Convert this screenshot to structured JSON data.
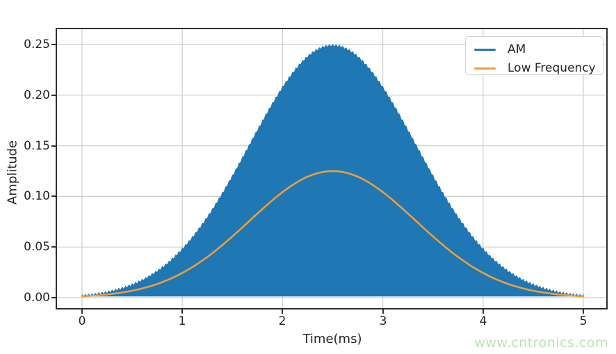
{
  "chart_data": {
    "type": "line",
    "title": "",
    "xlabel": "Time(ms)",
    "ylabel": "Amplitude",
    "xlim": [
      -0.25,
      5.23
    ],
    "ylim": [
      -0.0103,
      0.265
    ],
    "grid": true,
    "x_ticks": [
      "0",
      "1",
      "2",
      "3",
      "4",
      "5"
    ],
    "y_ticks": [
      "0.00",
      "0.05",
      "0.10",
      "0.15",
      "0.20",
      "0.25"
    ],
    "legend_position": "upper right",
    "x_ms": [
      0,
      0.25,
      0.5,
      0.75,
      1,
      1.25,
      1.5,
      1.75,
      2,
      2.25,
      2.5,
      2.75,
      3,
      3.25,
      3.5,
      3.75,
      4,
      4.25,
      4.5,
      4.75,
      5
    ],
    "series": [
      {
        "name": "AM",
        "color": "#1f77b4",
        "kind": "filled_oscillation",
        "description": "high-frequency carrier oscillating between 0 and the envelope, appears as a solid filled bell shape with serrated edge",
        "envelope_peak": 0.25,
        "envelope_values": [
          0.0027,
          0.0064,
          0.0138,
          0.0272,
          0.049,
          0.0806,
          0.1211,
          0.1663,
          0.2086,
          0.2389,
          0.25,
          0.2389,
          0.2086,
          0.1663,
          0.1211,
          0.0806,
          0.049,
          0.0272,
          0.0138,
          0.0064,
          0.0027
        ]
      },
      {
        "name": "Low Frequency",
        "color": "#ef9d3d",
        "kind": "line",
        "peak": 0.125,
        "values": [
          0.0013,
          0.0032,
          0.0069,
          0.0136,
          0.0245,
          0.0403,
          0.0606,
          0.0832,
          0.1043,
          0.1195,
          0.125,
          0.1195,
          0.1043,
          0.0832,
          0.0606,
          0.0403,
          0.0245,
          0.0136,
          0.0069,
          0.0032,
          0.0013
        ]
      }
    ],
    "model": {
      "shape": "gaussian",
      "center_ms": 2.5,
      "sigma_ms": 0.83
    },
    "grid_color": "#cdcdcd",
    "frame_color": "#2e2e2e"
  },
  "watermark": {
    "text": "www.cntronics.com",
    "color": "#b9e4b1"
  }
}
